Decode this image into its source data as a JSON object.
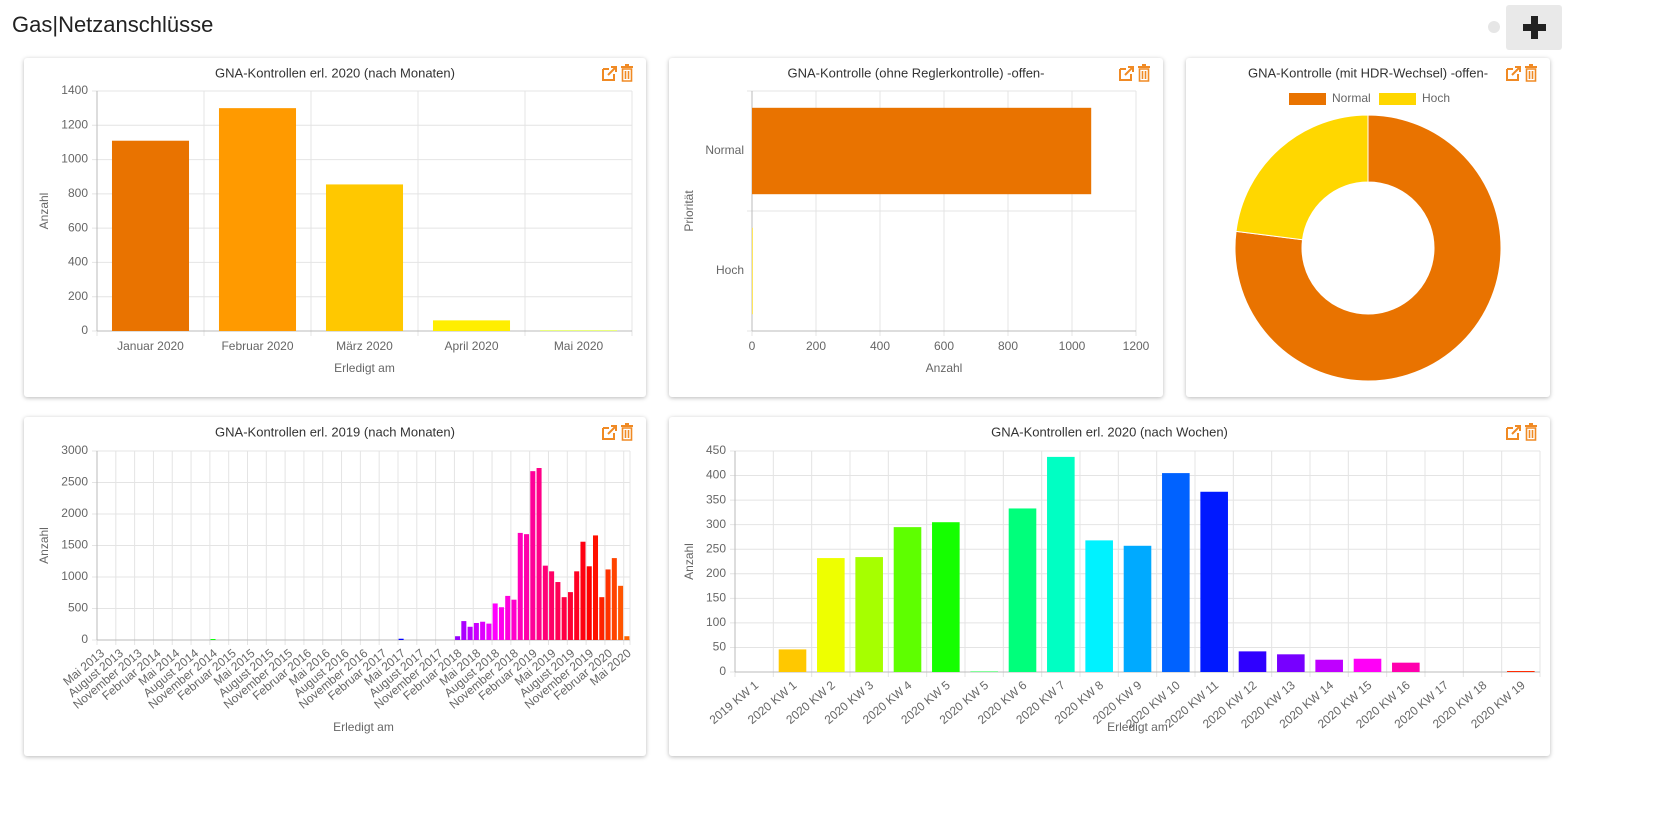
{
  "header": {
    "title": "Gas|Netzanschlüsse"
  },
  "chart_data": [
    {
      "type": "bar",
      "title": "GNA-Kontrollen erl. 2020 (nach Monaten)",
      "x_label": "Erledigt am",
      "y_label": "Anzahl",
      "categories": [
        "Januar 2020",
        "Februar 2020",
        "März 2020",
        "April 2020",
        "Mai 2020"
      ],
      "values": [
        1110,
        1300,
        855,
        62,
        3
      ],
      "colors": [
        "#e97300",
        "#ff9a00",
        "#ffc800",
        "#ffee00",
        "#d4ff00"
      ],
      "ylim": [
        0,
        1400
      ],
      "yticks": [
        0,
        200,
        400,
        600,
        800,
        1000,
        1200,
        1400
      ],
      "grid": true
    },
    {
      "type": "hbar",
      "title": "GNA-Kontrolle (ohne Reglerkontrolle) -offen-",
      "x_label": "Anzahl",
      "y_label": "Priorität",
      "categories": [
        "Normal",
        "Hoch"
      ],
      "values": [
        1060,
        2
      ],
      "colors": [
        "#e97300",
        "#ffd700"
      ],
      "xlim": [
        0,
        1200
      ],
      "xticks": [
        0,
        200,
        400,
        600,
        800,
        1000,
        1200
      ],
      "grid": true
    },
    {
      "type": "doughnut",
      "title": "GNA-Kontrolle (mit HDR-Wechsel) -offen-",
      "categories": [
        "Normal",
        "Hoch"
      ],
      "values": [
        77,
        23
      ],
      "colors": [
        "#e97300",
        "#ffd700"
      ],
      "legend": "top"
    },
    {
      "type": "bar",
      "title": "GNA-Kontrollen erl. 2019 (nach Monaten)",
      "x_label": "Erledigt am",
      "y_label": "Anzahl",
      "categories": [
        "Mai 2013",
        null,
        null,
        "August 2013",
        null,
        null,
        "November 2013",
        null,
        null,
        "Februar 2014",
        null,
        null,
        "Mai 2014",
        null,
        null,
        "August 2014",
        null,
        null,
        "November 2014",
        null,
        null,
        "Februar 2015",
        null,
        null,
        "Mai 2015",
        null,
        null,
        "August 2015",
        null,
        null,
        "November 2015",
        null,
        null,
        "Februar 2016",
        null,
        null,
        "Mai 2016",
        null,
        null,
        "August 2016",
        null,
        null,
        "November 2016",
        null,
        null,
        "Februar 2017",
        null,
        null,
        "Mai 2017",
        null,
        null,
        "August 2017",
        null,
        null,
        "November 2017",
        null,
        null,
        "Februar 2018",
        null,
        null,
        "Mai 2018",
        null,
        null,
        "August 2018",
        null,
        null,
        "November 2018",
        null,
        null,
        "Februar 2019",
        null,
        null,
        "Mai 2019",
        null,
        null,
        "August 2019",
        null,
        null,
        "November 2019",
        null,
        null,
        "Februar 2020",
        null,
        null,
        "Mai 2020"
      ],
      "values": [
        0,
        0,
        0,
        0,
        0,
        0,
        0,
        0,
        0,
        0,
        0,
        0,
        0,
        0,
        0,
        0,
        0,
        0,
        15,
        0,
        0,
        0,
        0,
        0,
        0,
        0,
        0,
        0,
        0,
        0,
        0,
        0,
        0,
        0,
        0,
        0,
        0,
        0,
        0,
        0,
        0,
        0,
        0,
        0,
        0,
        0,
        0,
        0,
        20,
        0,
        0,
        0,
        0,
        0,
        0,
        0,
        0,
        60,
        300,
        210,
        270,
        290,
        260,
        580,
        520,
        700,
        640,
        1700,
        1680,
        2680,
        2730,
        1180,
        1090,
        920,
        680,
        760,
        1090,
        1560,
        1170,
        1660,
        680,
        1120,
        1300,
        860,
        60
      ],
      "colors": [
        "hsl(48,100%,50%)",
        "hsl(52,100%,50%)",
        "hsl(56,100%,50%)",
        "hsl(60,100%,50%)",
        "hsl(64,100%,50%)",
        "hsl(68,100%,50%)",
        "hsl(72,100%,50%)",
        "hsl(76,100%,50%)",
        "hsl(80,100%,50%)",
        "hsl(84,100%,50%)",
        "hsl(88,100%,50%)",
        "hsl(92,100%,50%)",
        "hsl(96,100%,50%)",
        "hsl(100,100%,50%)",
        "hsl(104,100%,50%)",
        "hsl(108,100%,50%)",
        "hsl(112,100%,50%)",
        "hsl(116,100%,50%)",
        "hsl(120,100%,50%)",
        "hsl(124,100%,50%)",
        "hsl(128,100%,50%)",
        "hsl(132,100%,50%)",
        "hsl(136,100%,50%)",
        "hsl(140,100%,50%)",
        "hsl(144,100%,50%)",
        "hsl(148,100%,50%)",
        "hsl(152,100%,50%)",
        "hsl(156,100%,50%)",
        "hsl(160,100%,50%)",
        "hsl(164,100%,50%)",
        "hsl(168,100%,50%)",
        "hsl(172,100%,50%)",
        "hsl(176,100%,50%)",
        "hsl(180,100%,50%)",
        "hsl(184,100%,50%)",
        "hsl(188,100%,50%)",
        "hsl(192,100%,50%)",
        "hsl(196,100%,50%)",
        "hsl(200,100%,50%)",
        "hsl(204,100%,50%)",
        "hsl(208,100%,50%)",
        "hsl(212,100%,50%)",
        "hsl(216,100%,50%)",
        "hsl(220,100%,50%)",
        "hsl(224,100%,50%)",
        "hsl(228,100%,50%)",
        "hsl(232,100%,50%)",
        "hsl(236,100%,50%)",
        "hsl(240,100%,50%)",
        "hsl(244,100%,50%)",
        "hsl(248,100%,50%)",
        "hsl(252,100%,50%)",
        "hsl(256,100%,50%)",
        "hsl(260,100%,50%)",
        "hsl(264,100%,50%)",
        "hsl(268,100%,50%)",
        "hsl(272,100%,50%)",
        "hsl(276,100%,50%)",
        "hsl(280,100%,50%)",
        "hsl(284,100%,50%)",
        "hsl(288,100%,50%)",
        "hsl(292,100%,50%)",
        "hsl(296,100%,50%)",
        "hsl(300,100%,50%)",
        "hsl(304,100%,50%)",
        "hsl(308,100%,50%)",
        "hsl(312,100%,50%)",
        "hsl(316,100%,50%)",
        "hsl(320,100%,50%)",
        "hsl(324,100%,50%)",
        "hsl(328,100%,50%)",
        "hsl(332,100%,50%)",
        "hsl(336,100%,50%)",
        "hsl(340,100%,50%)",
        "hsl(344,100%,50%)",
        "hsl(348,100%,50%)",
        "hsl(352,100%,50%)",
        "hsl(356,100%,50%)",
        "hsl(360,100%,50%)",
        "hsl(364,100%,50%)",
        "hsl(368,100%,50%)",
        "hsl(372,100%,50%)",
        "hsl(376,100%,50%)",
        "hsl(380,100%,50%)",
        "hsl(384,100%,50%)"
      ],
      "ylim": [
        0,
        3000
      ],
      "yticks": [
        0,
        500,
        1000,
        1500,
        2000,
        2500,
        3000
      ],
      "grid": true
    },
    {
      "type": "bar",
      "title": "GNA-Kontrollen erl. 2020 (nach Wochen)",
      "x_label": "Erledigt am",
      "y_label": "Anzahl",
      "categories": [
        "2019 KW 1",
        "2020 KW 1",
        "2020 KW 2",
        "2020 KW 3",
        "2020 KW 4",
        "2020 KW 5",
        "2020 KW 5",
        "2020 KW 6",
        "2020 KW 7",
        "2020 KW 8",
        "2020 KW 9",
        "2020 KW 10",
        "2020 KW 11",
        "2020 KW 12",
        "2020 KW 13",
        "2020 KW 14",
        "2020 KW 15",
        "2020 KW 16",
        "2020 KW 17",
        "2020 KW 18",
        "2020 KW 19"
      ],
      "values": [
        0,
        46,
        232,
        234,
        295,
        305,
        1,
        333,
        438,
        268,
        257,
        405,
        367,
        42,
        36,
        25,
        27,
        19,
        0,
        0,
        2
      ],
      "colors": [
        "hsl(30,100%,50%)",
        "hsl(47,100%,50%)",
        "hsl(64,100%,50%)",
        "hsl(81,100%,50%)",
        "hsl(98,100%,50%)",
        "hsl(115,100%,50%)",
        "hsl(132,100%,50%)",
        "hsl(149,100%,50%)",
        "hsl(166,100%,50%)",
        "hsl(183,100%,50%)",
        "hsl(200,100%,50%)",
        "hsl(217,100%,50%)",
        "hsl(234,100%,50%)",
        "hsl(251,100%,50%)",
        "hsl(268,100%,50%)",
        "hsl(285,100%,50%)",
        "hsl(302,100%,50%)",
        "hsl(319,100%,50%)",
        "hsl(336,100%,50%)",
        "hsl(353,100%,50%)",
        "hsl(370,100%,50%)"
      ],
      "ylim": [
        0,
        450
      ],
      "yticks": [
        0,
        50,
        100,
        150,
        200,
        250,
        300,
        350,
        400,
        450
      ],
      "grid": true
    }
  ]
}
